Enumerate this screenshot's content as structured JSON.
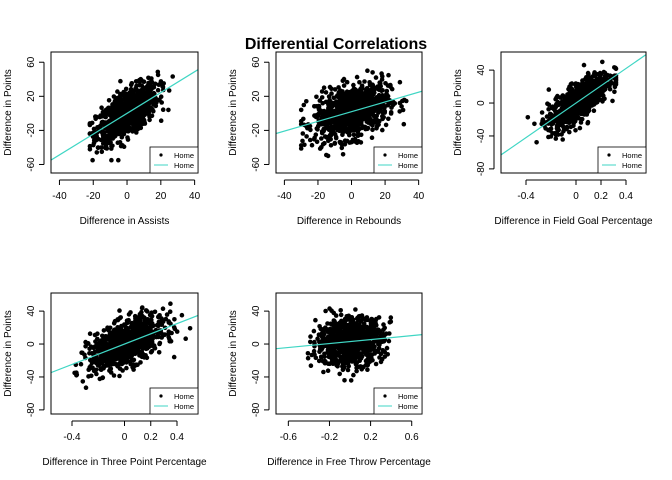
{
  "title": "Differential Correlations",
  "colors": {
    "points": "#000000",
    "fit_line": "#3fd6c4",
    "axes": "#000000"
  },
  "chart_data": [
    {
      "type": "scatter",
      "xlabel": "Difference in Assists",
      "ylabel": "Difference in Points",
      "xlim": [
        -45,
        42
      ],
      "ylim": [
        -70,
        72
      ],
      "xticks": [
        -40,
        -20,
        0,
        20,
        40
      ],
      "yticks": [
        -60,
        -20,
        20,
        60
      ],
      "cloud": {
        "x_center": 0,
        "x_spread": 9,
        "x_min": -22,
        "x_max": 27,
        "y_resid_sd": 13,
        "y_min": -55,
        "y_max": 50,
        "n": 900
      },
      "fit": {
        "intercept": 0,
        "slope": 1.22
      },
      "legend": {
        "position": "bottom-right",
        "entries": [
          {
            "label": "Home",
            "kind": "point"
          },
          {
            "label": "Home",
            "kind": "line"
          }
        ]
      }
    },
    {
      "type": "scatter",
      "xlabel": "Difference in Rebounds",
      "ylabel": "Difference in Points",
      "xlim": [
        -45,
        42
      ],
      "ylim": [
        -70,
        72
      ],
      "xticks": [
        -40,
        -20,
        0,
        20,
        40
      ],
      "yticks": [
        -60,
        -20,
        20,
        60
      ],
      "cloud": {
        "x_center": 0,
        "x_spread": 11,
        "x_min": -30,
        "x_max": 35,
        "y_resid_sd": 15,
        "y_min": -55,
        "y_max": 50,
        "n": 900
      },
      "fit": {
        "intercept": 2,
        "slope": 0.57
      },
      "legend": {
        "position": "bottom-right",
        "entries": [
          {
            "label": "Home",
            "kind": "point"
          },
          {
            "label": "Home",
            "kind": "line"
          }
        ]
      }
    },
    {
      "type": "scatter",
      "xlabel": "Difference in Field Goal Percentage",
      "ylabel": "Difference in Points",
      "xlim": [
        -0.6,
        0.56
      ],
      "ylim": [
        -85,
        62
      ],
      "xticks": [
        -0.4,
        0.0,
        0.2,
        0.4
      ],
      "yticks": [
        -80,
        -40,
        0,
        40
      ],
      "cloud": {
        "x_center": 0.02,
        "x_spread": 0.12,
        "x_min": -0.4,
        "x_max": 0.32,
        "y_resid_sd": 11,
        "y_min": -55,
        "y_max": 50,
        "n": 900
      },
      "fit": {
        "intercept": 0,
        "slope": 105
      },
      "legend": {
        "position": "bottom-right",
        "entries": [
          {
            "label": "Home",
            "kind": "point"
          },
          {
            "label": "Home",
            "kind": "line"
          }
        ]
      }
    },
    {
      "type": "scatter",
      "xlabel": "Difference in Three Point Percentage",
      "ylabel": "Difference in Points",
      "xlim": [
        -0.56,
        0.56
      ],
      "ylim": [
        -85,
        62
      ],
      "xticks": [
        -0.4,
        0.0,
        0.2,
        0.4
      ],
      "yticks": [
        -80,
        -40,
        0,
        40
      ],
      "cloud": {
        "x_center": 0.02,
        "x_spread": 0.14,
        "x_min": -0.45,
        "x_max": 0.5,
        "y_resid_sd": 13,
        "y_min": -55,
        "y_max": 50,
        "n": 900
      },
      "fit": {
        "intercept": 0,
        "slope": 62
      },
      "legend": {
        "position": "bottom-right",
        "entries": [
          {
            "label": "Home",
            "kind": "point"
          },
          {
            "label": "Home",
            "kind": "line"
          }
        ]
      }
    },
    {
      "type": "scatter",
      "xlabel": "Difference in Free Throw Percentage",
      "ylabel": "Difference in Points",
      "xlim": [
        -0.72,
        0.7
      ],
      "ylim": [
        -85,
        62
      ],
      "xticks": [
        -0.6,
        -0.2,
        0.2,
        0.6
      ],
      "yticks": [
        -80,
        -40,
        0,
        40
      ],
      "cloud": {
        "x_center": 0.0,
        "x_spread": 0.16,
        "x_min": -0.55,
        "x_max": 0.65,
        "y_resid_sd": 14,
        "y_min": -55,
        "y_max": 50,
        "n": 900
      },
      "fit": {
        "intercept": 3,
        "slope": 12
      },
      "legend": {
        "position": "bottom-right",
        "entries": [
          {
            "label": "Home",
            "kind": "point"
          },
          {
            "label": "Home",
            "kind": "line"
          }
        ]
      }
    }
  ]
}
